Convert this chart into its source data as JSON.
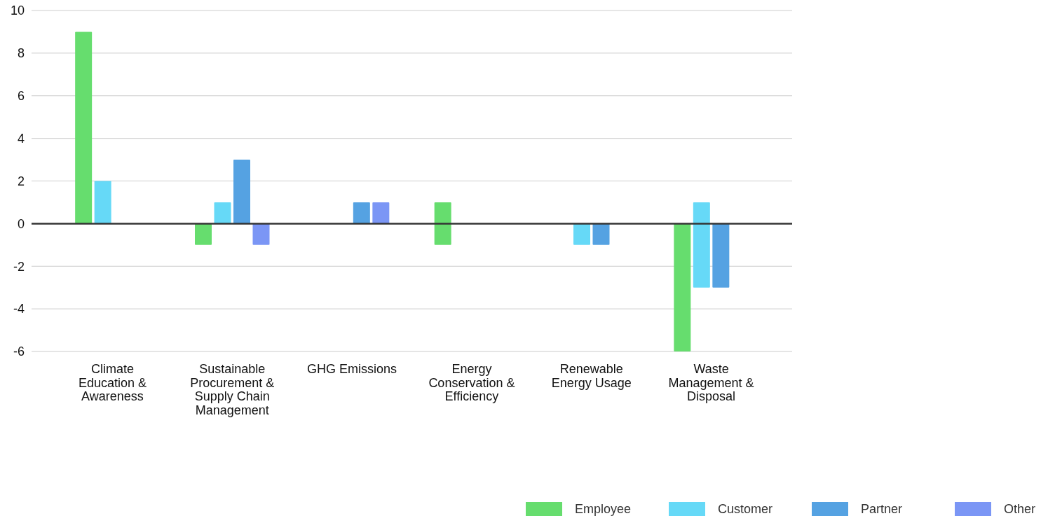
{
  "chart_data": {
    "type": "bar",
    "categories": [
      "Climate Education & Awareness",
      "Sustainable Procurement & Supply Chain Management",
      "GHG Emissions",
      "Energy Conservation & Efficiency",
      "Renewable Energy Usage",
      "Waste Management & Disposal"
    ],
    "series": [
      {
        "name": "Employee",
        "color": "#66dd6e",
        "values": [
          9,
          -1,
          null,
          2,
          null,
          -6
        ],
        "base": [
          0,
          0,
          null,
          -1,
          null,
          0
        ]
      },
      {
        "name": "Customer",
        "color": "#66d9f7",
        "values": [
          2,
          1,
          null,
          null,
          -1,
          4
        ],
        "base": [
          0,
          0,
          null,
          null,
          0,
          -3
        ]
      },
      {
        "name": "Partner",
        "color": "#55a2e2",
        "values": [
          null,
          3,
          1,
          null,
          -1,
          -3
        ],
        "base": [
          null,
          0,
          0,
          null,
          0,
          0
        ]
      },
      {
        "name": "Other",
        "color": "#7b96f5",
        "values": [
          null,
          -1,
          1,
          null,
          null,
          null
        ],
        "base": [
          null,
          0,
          0,
          null,
          null,
          null
        ]
      }
    ],
    "ylim": [
      -6,
      10
    ],
    "yticks": [
      -6,
      -4,
      -2,
      0,
      2,
      4,
      6,
      8,
      10
    ],
    "grid": "y",
    "legend": "bottom right"
  }
}
